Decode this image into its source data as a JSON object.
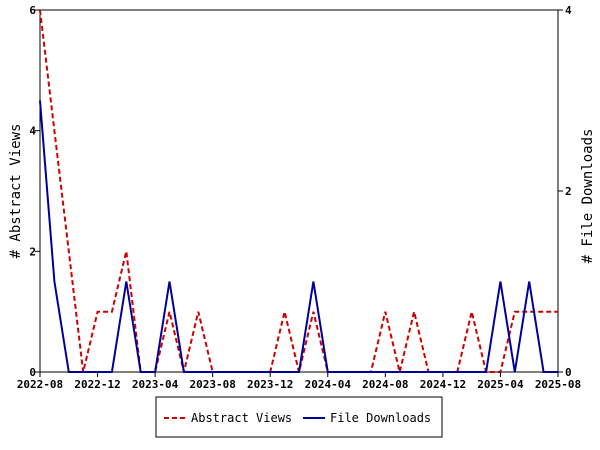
{
  "chart_data": {
    "type": "line",
    "ylabel_left": "# Abstract Views",
    "ylabel_right": "# File Downloads",
    "x_ticks": [
      "2022-08",
      "2022-12",
      "2023-04",
      "2023-08",
      "2023-12",
      "2024-04",
      "2024-08",
      "2024-12",
      "2025-04",
      "2025-08"
    ],
    "x_range": [
      "2022-08",
      "2025-08"
    ],
    "ylim_left": [
      0,
      6
    ],
    "ylim_right": [
      0,
      4
    ],
    "yticks_left": [
      0,
      2,
      4,
      6
    ],
    "yticks_right": [
      0,
      2,
      4
    ],
    "grid": false,
    "legend_position": "bottom-center",
    "series": [
      {
        "name": "Abstract Views",
        "axis": "left",
        "color": "#cc0000",
        "style": "dashed",
        "x": [
          "2022-08",
          "2022-09",
          "2022-10",
          "2022-11",
          "2022-12",
          "2023-01",
          "2023-02",
          "2023-03",
          "2023-04",
          "2023-05",
          "2023-06",
          "2023-07",
          "2023-08",
          "2023-09",
          "2023-10",
          "2023-11",
          "2023-12",
          "2024-01",
          "2024-02",
          "2024-03",
          "2024-04",
          "2024-05",
          "2024-06",
          "2024-07",
          "2024-08",
          "2024-09",
          "2024-10",
          "2024-11",
          "2024-12",
          "2025-01",
          "2025-02",
          "2025-03",
          "2025-04",
          "2025-05",
          "2025-06",
          "2025-07",
          "2025-08"
        ],
        "values": [
          6,
          4,
          2,
          0,
          1,
          1,
          2,
          0,
          0,
          1,
          0,
          1,
          0,
          0,
          0,
          0,
          0,
          1,
          0,
          1,
          0,
          0,
          0,
          0,
          1,
          0,
          1,
          0,
          0,
          0,
          1,
          0,
          0,
          1,
          1,
          1,
          1
        ]
      },
      {
        "name": "File Downloads",
        "axis": "right",
        "color": "#000099",
        "style": "solid",
        "x": [
          "2022-08",
          "2022-09",
          "2022-10",
          "2022-11",
          "2022-12",
          "2023-01",
          "2023-02",
          "2023-03",
          "2023-04",
          "2023-05",
          "2023-06",
          "2023-07",
          "2023-08",
          "2023-09",
          "2023-10",
          "2023-11",
          "2023-12",
          "2024-01",
          "2024-02",
          "2024-03",
          "2024-04",
          "2024-05",
          "2024-06",
          "2024-07",
          "2024-08",
          "2024-09",
          "2024-10",
          "2024-11",
          "2024-12",
          "2025-01",
          "2025-02",
          "2025-03",
          "2025-04",
          "2025-05",
          "2025-06",
          "2025-07",
          "2025-08"
        ],
        "values": [
          3,
          1,
          0,
          0,
          0,
          0,
          1,
          0,
          0,
          1,
          0,
          0,
          0,
          0,
          0,
          0,
          0,
          0,
          0,
          1,
          0,
          0,
          0,
          0,
          0,
          0,
          0,
          0,
          0,
          0,
          0,
          0,
          1,
          0,
          1,
          0,
          0
        ]
      }
    ]
  }
}
